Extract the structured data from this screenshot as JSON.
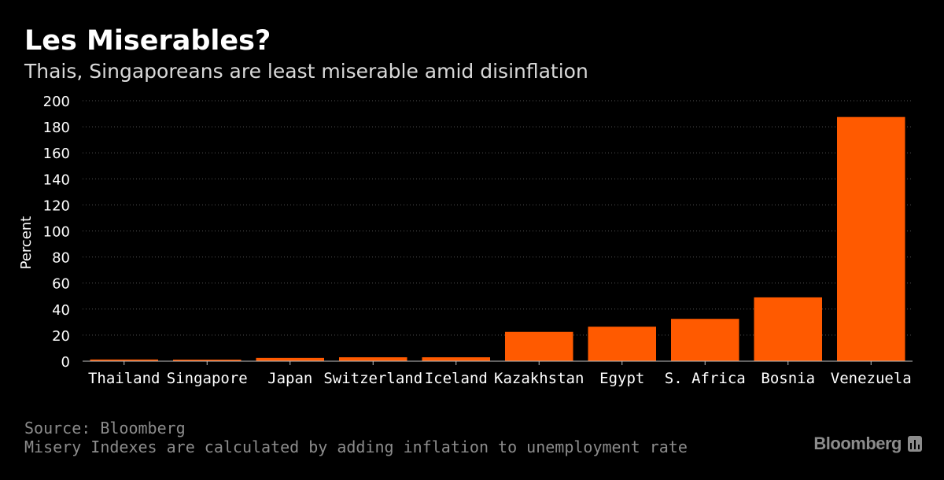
{
  "chart_data": {
    "type": "bar",
    "title": "Les Miserables?",
    "subtitle": "Thais, Singaporeans are least miserable amid disinflation",
    "ylabel": "Percent",
    "xlabel": "",
    "categories": [
      "Thailand",
      "Singapore",
      "Japan",
      "Switzerland",
      "Iceland",
      "Kazakhstan",
      "Egypt",
      "S. Africa",
      "Bosnia",
      "Venezuela"
    ],
    "values": [
      1.3,
      1.2,
      2.5,
      3.0,
      3.0,
      22.5,
      26.5,
      32.5,
      49.0,
      187.5
    ],
    "ylim": [
      0,
      200
    ],
    "yticks": [
      0,
      20,
      40,
      60,
      80,
      100,
      120,
      140,
      160,
      180,
      200
    ],
    "grid": true,
    "bar_color": "#ff5a00",
    "grid_color": "#555555",
    "background": "#000000"
  },
  "footer": {
    "source": "Source: Bloomberg",
    "note": "Misery Indexes are calculated by adding inflation to unemployment rate",
    "brand": "Bloomberg",
    "brand_icon": "bloomberg-chart-icon"
  }
}
